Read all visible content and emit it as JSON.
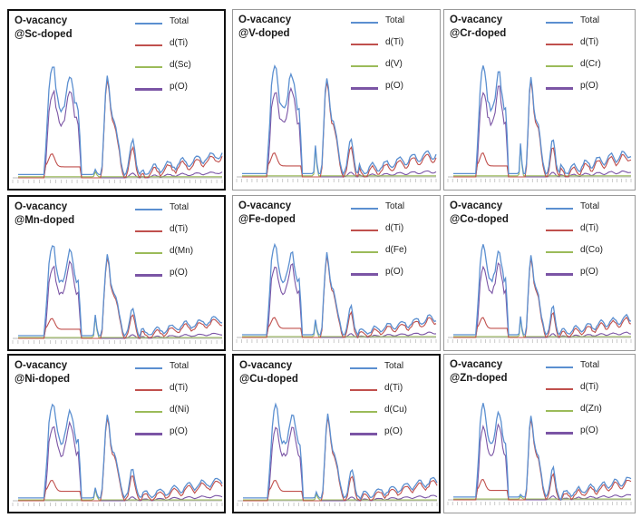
{
  "colors": {
    "total": "#5b8fd0",
    "d_ti": "#c0504d",
    "d_dopant": "#9bbb59",
    "p_o": "#7b55a5"
  },
  "panels": [
    {
      "title_line1": "O-vacancy",
      "title_line2": "@Sc-doped",
      "legend": [
        "Total",
        "d(Ti)",
        "d(Sc)",
        "p(O)"
      ],
      "dopant_peak": "sc"
    },
    {
      "title_line1": "O-vacancy",
      "title_line2": "@V-doped",
      "legend": [
        "Total",
        "d(Ti)",
        "d(V)",
        "p(O)"
      ],
      "dopant_peak": "v"
    },
    {
      "title_line1": "O-vacancy",
      "title_line2": "@Cr-doped",
      "legend": [
        "Total",
        "d(Ti)",
        "d(Cr)",
        "p(O)"
      ],
      "dopant_peak": "cr"
    },
    {
      "title_line1": "O-vacancy",
      "title_line2": "@Mn-doped",
      "legend": [
        "Total",
        "d(Ti)",
        "d(Mn)",
        "p(O)"
      ],
      "dopant_peak": "mn"
    },
    {
      "title_line1": "O-vacancy",
      "title_line2": "@Fe-doped",
      "legend": [
        "Total",
        "d(Ti)",
        "d(Fe)",
        "p(O)"
      ],
      "dopant_peak": "fe"
    },
    {
      "title_line1": "O-vacancy",
      "title_line2": "@Co-doped",
      "legend": [
        "Total",
        "d(Ti)",
        "d(Co)",
        "p(O)"
      ],
      "dopant_peak": "co"
    },
    {
      "title_line1": "O-vacancy",
      "title_line2": "@Ni-doped",
      "legend": [
        "Total",
        "d(Ti)",
        "d(Ni)",
        "p(O)"
      ],
      "dopant_peak": "ni"
    },
    {
      "title_line1": "O-vacancy",
      "title_line2": "@Cu-doped",
      "legend": [
        "Total",
        "d(Ti)",
        "d(Cu)",
        "p(O)"
      ],
      "dopant_peak": "cu"
    },
    {
      "title_line1": "O-vacancy",
      "title_line2": "@Zn-doped",
      "legend": [
        "Total",
        "d(Ti)",
        "d(Zn)",
        "p(O)"
      ],
      "dopant_peak": "zn"
    }
  ],
  "chart_data": {
    "type": "line",
    "layout": "3x3 grid of density-of-states plots",
    "series": [
      {
        "name": "Total"
      },
      {
        "name": "d(Ti)"
      },
      {
        "name": "d(dopant)"
      },
      {
        "name": "p(O)"
      }
    ],
    "grid": false
  }
}
